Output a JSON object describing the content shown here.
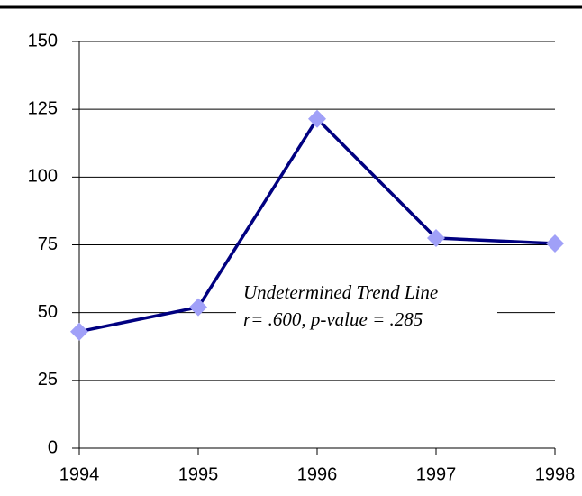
{
  "chart_data": {
    "type": "line",
    "x": [
      1994,
      1995,
      1996,
      1997,
      1998
    ],
    "values": [
      43,
      52,
      121.5,
      77.5,
      75.5
    ],
    "color": "#000080",
    "marker_color": "#a0a0f8",
    "xlim": [
      1994,
      1998
    ],
    "xticks": [
      1994,
      1995,
      1996,
      1997,
      1998
    ],
    "ylim": [
      0,
      150
    ],
    "yticks": [
      0,
      25,
      50,
      75,
      100,
      125,
      150
    ],
    "grid": true,
    "annotation": [
      "Undetermined Trend Line",
      "r= .600, p-value = .285"
    ]
  }
}
